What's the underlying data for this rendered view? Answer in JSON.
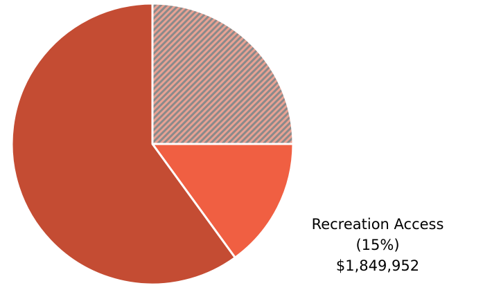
{
  "chart_data": {
    "type": "pie",
    "categories": [
      null,
      "Recreation Access",
      null
    ],
    "values": [
      25,
      15,
      60
    ],
    "value_labels": [
      null,
      "(15%)",
      null
    ],
    "amounts": [
      null,
      1849952,
      null
    ],
    "amount_labels": [
      null,
      "$1,849,952",
      null
    ],
    "colors": [
      "#e8a294",
      "#f05f42",
      "#c44c33"
    ],
    "hatch": [
      true,
      false,
      false
    ],
    "start_angle": "top",
    "direction": "clockwise"
  }
}
